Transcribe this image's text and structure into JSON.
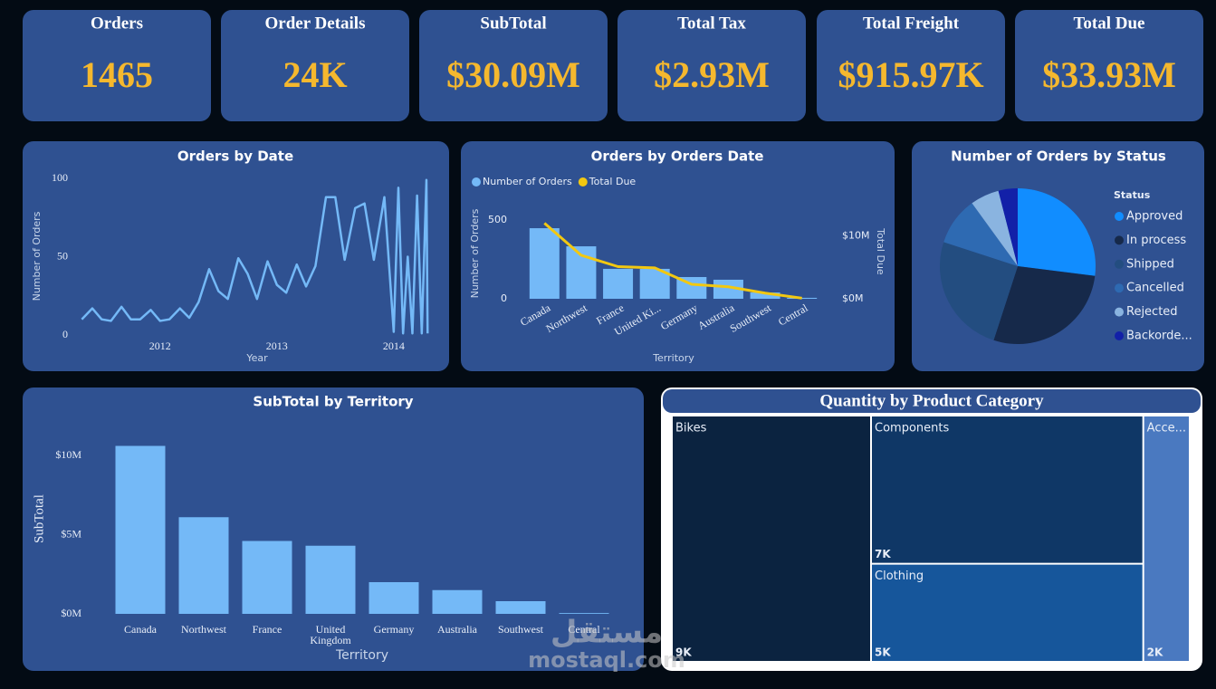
{
  "kpis": [
    {
      "title": "Orders",
      "value": 1465
    },
    {
      "title": "Order Details",
      "value": "24K"
    },
    {
      "title": "SubTotal",
      "value": "$30.09M"
    },
    {
      "title": "Total Tax",
      "value": "$2.93M"
    },
    {
      "title": "Total Freight",
      "value": "$915.97K"
    },
    {
      "title": "Total Due",
      "value": "$33.93M"
    }
  ],
  "chart_data": [
    {
      "type": "line",
      "title": "Orders by Date",
      "xlabel": "Year",
      "ylabel": "Number of Orders",
      "color": "#74b9f7",
      "x": [
        2011.33,
        2011.42,
        2011.5,
        2011.58,
        2011.67,
        2011.75,
        2011.83,
        2011.92,
        2012.0,
        2012.08,
        2012.17,
        2012.25,
        2012.33,
        2012.42,
        2012.5,
        2012.58,
        2012.67,
        2012.75,
        2012.83,
        2012.92,
        2013.0,
        2013.08,
        2013.17,
        2013.25,
        2013.33,
        2013.42,
        2013.5,
        2013.58,
        2013.67,
        2013.75,
        2013.83,
        2013.92,
        2014.0,
        2014.04,
        2014.08,
        2014.12,
        2014.16,
        2014.2,
        2014.24,
        2014.28,
        2014.29
      ],
      "values": [
        10,
        17,
        10,
        9,
        18,
        10,
        10,
        16,
        9,
        10,
        17,
        11,
        21,
        42,
        28,
        23,
        49,
        39,
        23,
        47,
        32,
        27,
        45,
        31,
        44,
        88,
        88,
        48,
        81,
        84,
        48,
        88,
        2,
        94,
        1,
        50,
        1,
        89,
        1,
        99,
        1
      ],
      "xlim": [
        2011.25,
        2014.35
      ],
      "xticks": [
        2012,
        2013,
        2014
      ],
      "ylim": [
        0,
        100
      ],
      "yticks": [
        0,
        50,
        100
      ],
      "grid": false
    },
    {
      "type": "combo",
      "title": "Orders by Orders Date",
      "xlabel": "Territory",
      "ylabel": "Number of Orders",
      "y2label": "Total Due",
      "categories": [
        "Canada",
        "Northwest",
        "France",
        "United Ki...",
        "Germany",
        "Australia",
        "Southwest",
        "Central"
      ],
      "series": [
        {
          "name": "Number of Orders",
          "color": "#74b9f7",
          "values": [
            448,
            333,
            190,
            190,
            138,
            121,
            40,
            6
          ]
        },
        {
          "name": "Total Due",
          "color": "#f2c811",
          "type": "line",
          "axis": "y2",
          "values": [
            12000000,
            6900000,
            5100000,
            4900000,
            2300000,
            1900000,
            900000,
            100000
          ]
        }
      ],
      "ylim": [
        0,
        600
      ],
      "yticks": [
        0,
        500
      ],
      "y2lim": [
        0,
        15000000
      ],
      "y2ticks": [
        {
          "value": 0,
          "label": "$0M"
        },
        {
          "value": 10000000,
          "label": "$10M"
        }
      ],
      "legend": "top-left"
    },
    {
      "type": "pie",
      "title": "Number of Orders by Status",
      "legend_title": "Status",
      "legend": "right",
      "categories": [
        "Approved",
        "In process",
        "Shipped",
        "Cancelled",
        "Rejected",
        "Backorde..."
      ],
      "values": [
        27,
        28,
        25,
        10,
        6,
        4
      ],
      "colors": [
        "#118dff",
        "#16294a",
        "#234d80",
        "#2e6ab2",
        "#8ab4e0",
        "#1220a8"
      ]
    },
    {
      "type": "bar",
      "title": "SubTotal by Territory",
      "xlabel": "Territory",
      "ylabel": "SubTotal",
      "color": "#74b9f7",
      "categories": [
        "Canada",
        "Northwest",
        "France",
        "United Kingdom",
        "Germany",
        "Australia",
        "Southwest",
        "Central"
      ],
      "values": [
        10600000,
        6100000,
        4600000,
        4300000,
        2000000,
        1500000,
        800000,
        50000
      ],
      "ylim": [
        0,
        11000000
      ],
      "yticks": [
        {
          "value": 0,
          "label": "$0M"
        },
        {
          "value": 5000000,
          "label": "$5M"
        },
        {
          "value": 10000000,
          "label": "$10M"
        }
      ]
    },
    {
      "type": "treemap",
      "title": "Quantity by Product Category",
      "categories": [
        "Bikes",
        "Components",
        "Clothing",
        "Acce..."
      ],
      "values": [
        9000,
        7400,
        4900,
        2100
      ],
      "value_labels": [
        "9K",
        "7K",
        "5K",
        "2K"
      ],
      "colors": [
        "#0b2340",
        "#0f3766",
        "#16569b",
        "#4a79c0"
      ]
    }
  ],
  "watermark": {
    "logo": "مستقل",
    "text": "mostaql.com"
  }
}
